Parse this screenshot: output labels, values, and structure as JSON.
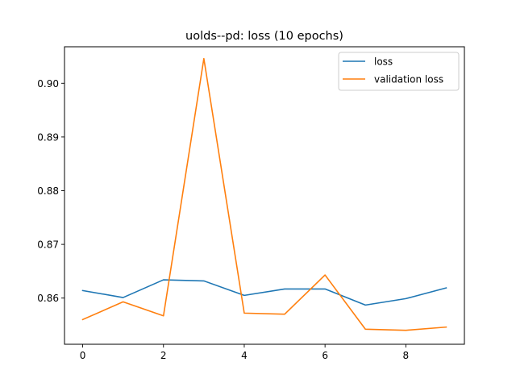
{
  "chart_data": {
    "type": "line",
    "title": "uolds--pd: loss (10 epochs)",
    "xlabel": "",
    "ylabel": "",
    "x": [
      0,
      1,
      2,
      3,
      4,
      5,
      6,
      7,
      8,
      9
    ],
    "xlim": [
      -0.45,
      9.45
    ],
    "ylim": [
      0.8514,
      0.9068
    ],
    "xticks": [
      0,
      2,
      4,
      6,
      8
    ],
    "yticks": [
      0.86,
      0.87,
      0.88,
      0.89,
      0.9
    ],
    "xtick_labels": [
      "0",
      "2",
      "4",
      "6",
      "8"
    ],
    "ytick_labels": [
      "0.86",
      "0.87",
      "0.88",
      "0.89",
      "0.90"
    ],
    "grid": false,
    "legend_position": "top-right",
    "series": [
      {
        "name": "loss",
        "color": "#1f77b4",
        "values": [
          0.8614,
          0.8601,
          0.8634,
          0.8632,
          0.8605,
          0.8617,
          0.8617,
          0.8587,
          0.8599,
          0.8619
        ]
      },
      {
        "name": "validation loss",
        "color": "#ff7f0e",
        "values": [
          0.856,
          0.8593,
          0.8567,
          0.9046,
          0.8572,
          0.857,
          0.8643,
          0.8542,
          0.854,
          0.8546
        ]
      }
    ]
  }
}
